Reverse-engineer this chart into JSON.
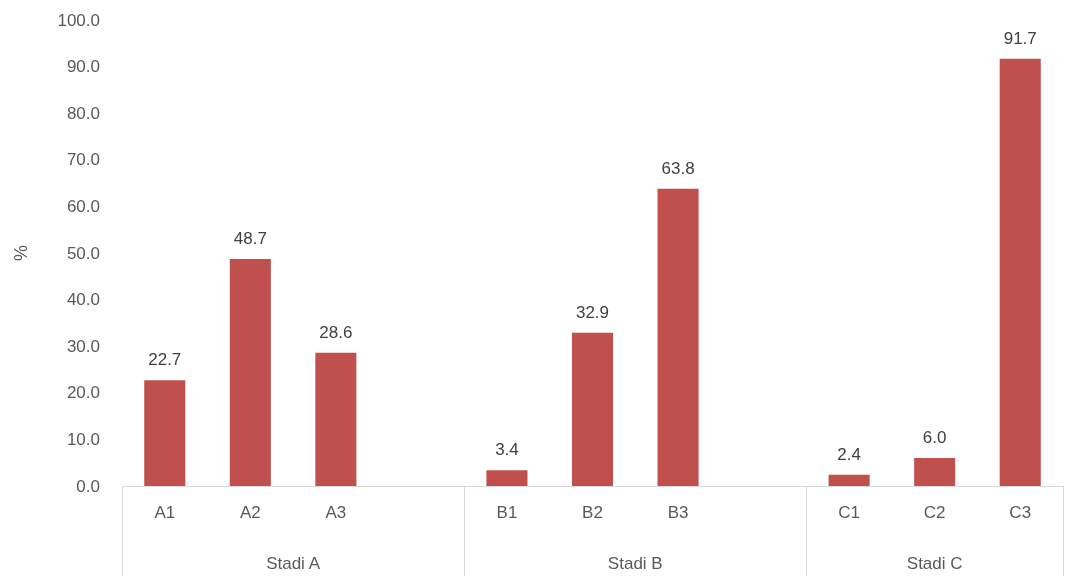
{
  "chart_data": {
    "type": "bar",
    "ylabel": "%",
    "categories": [
      "A1",
      "A2",
      "A3",
      null,
      "B1",
      "B2",
      "B3",
      null,
      "C1",
      "C2",
      "C3"
    ],
    "values": [
      22.7,
      48.7,
      28.6,
      null,
      3.4,
      32.9,
      63.8,
      null,
      2.4,
      6.0,
      91.7
    ],
    "value_labels": [
      "22.7",
      "48.7",
      "28.6",
      null,
      "3.4",
      "32.9",
      "63.8",
      null,
      "2.4",
      "6.0",
      "91.7"
    ],
    "color": "#c0504d",
    "ylim": [
      0,
      100
    ],
    "yticks": [
      {
        "value": 0,
        "label": "0.0"
      },
      {
        "value": 10,
        "label": "10.0"
      },
      {
        "value": 20,
        "label": "20.0"
      },
      {
        "value": 30,
        "label": "30.0"
      },
      {
        "value": 40,
        "label": "40.0"
      },
      {
        "value": 50,
        "label": "50.0"
      },
      {
        "value": 60,
        "label": "60.0"
      },
      {
        "value": 70,
        "label": "70.0"
      },
      {
        "value": 80,
        "label": "80.0"
      },
      {
        "value": 90,
        "label": "90.0"
      },
      {
        "value": 100,
        "label": "100.0"
      }
    ],
    "annotations": [
      "Stadi A",
      "Stadi B",
      "Stadi C"
    ]
  }
}
